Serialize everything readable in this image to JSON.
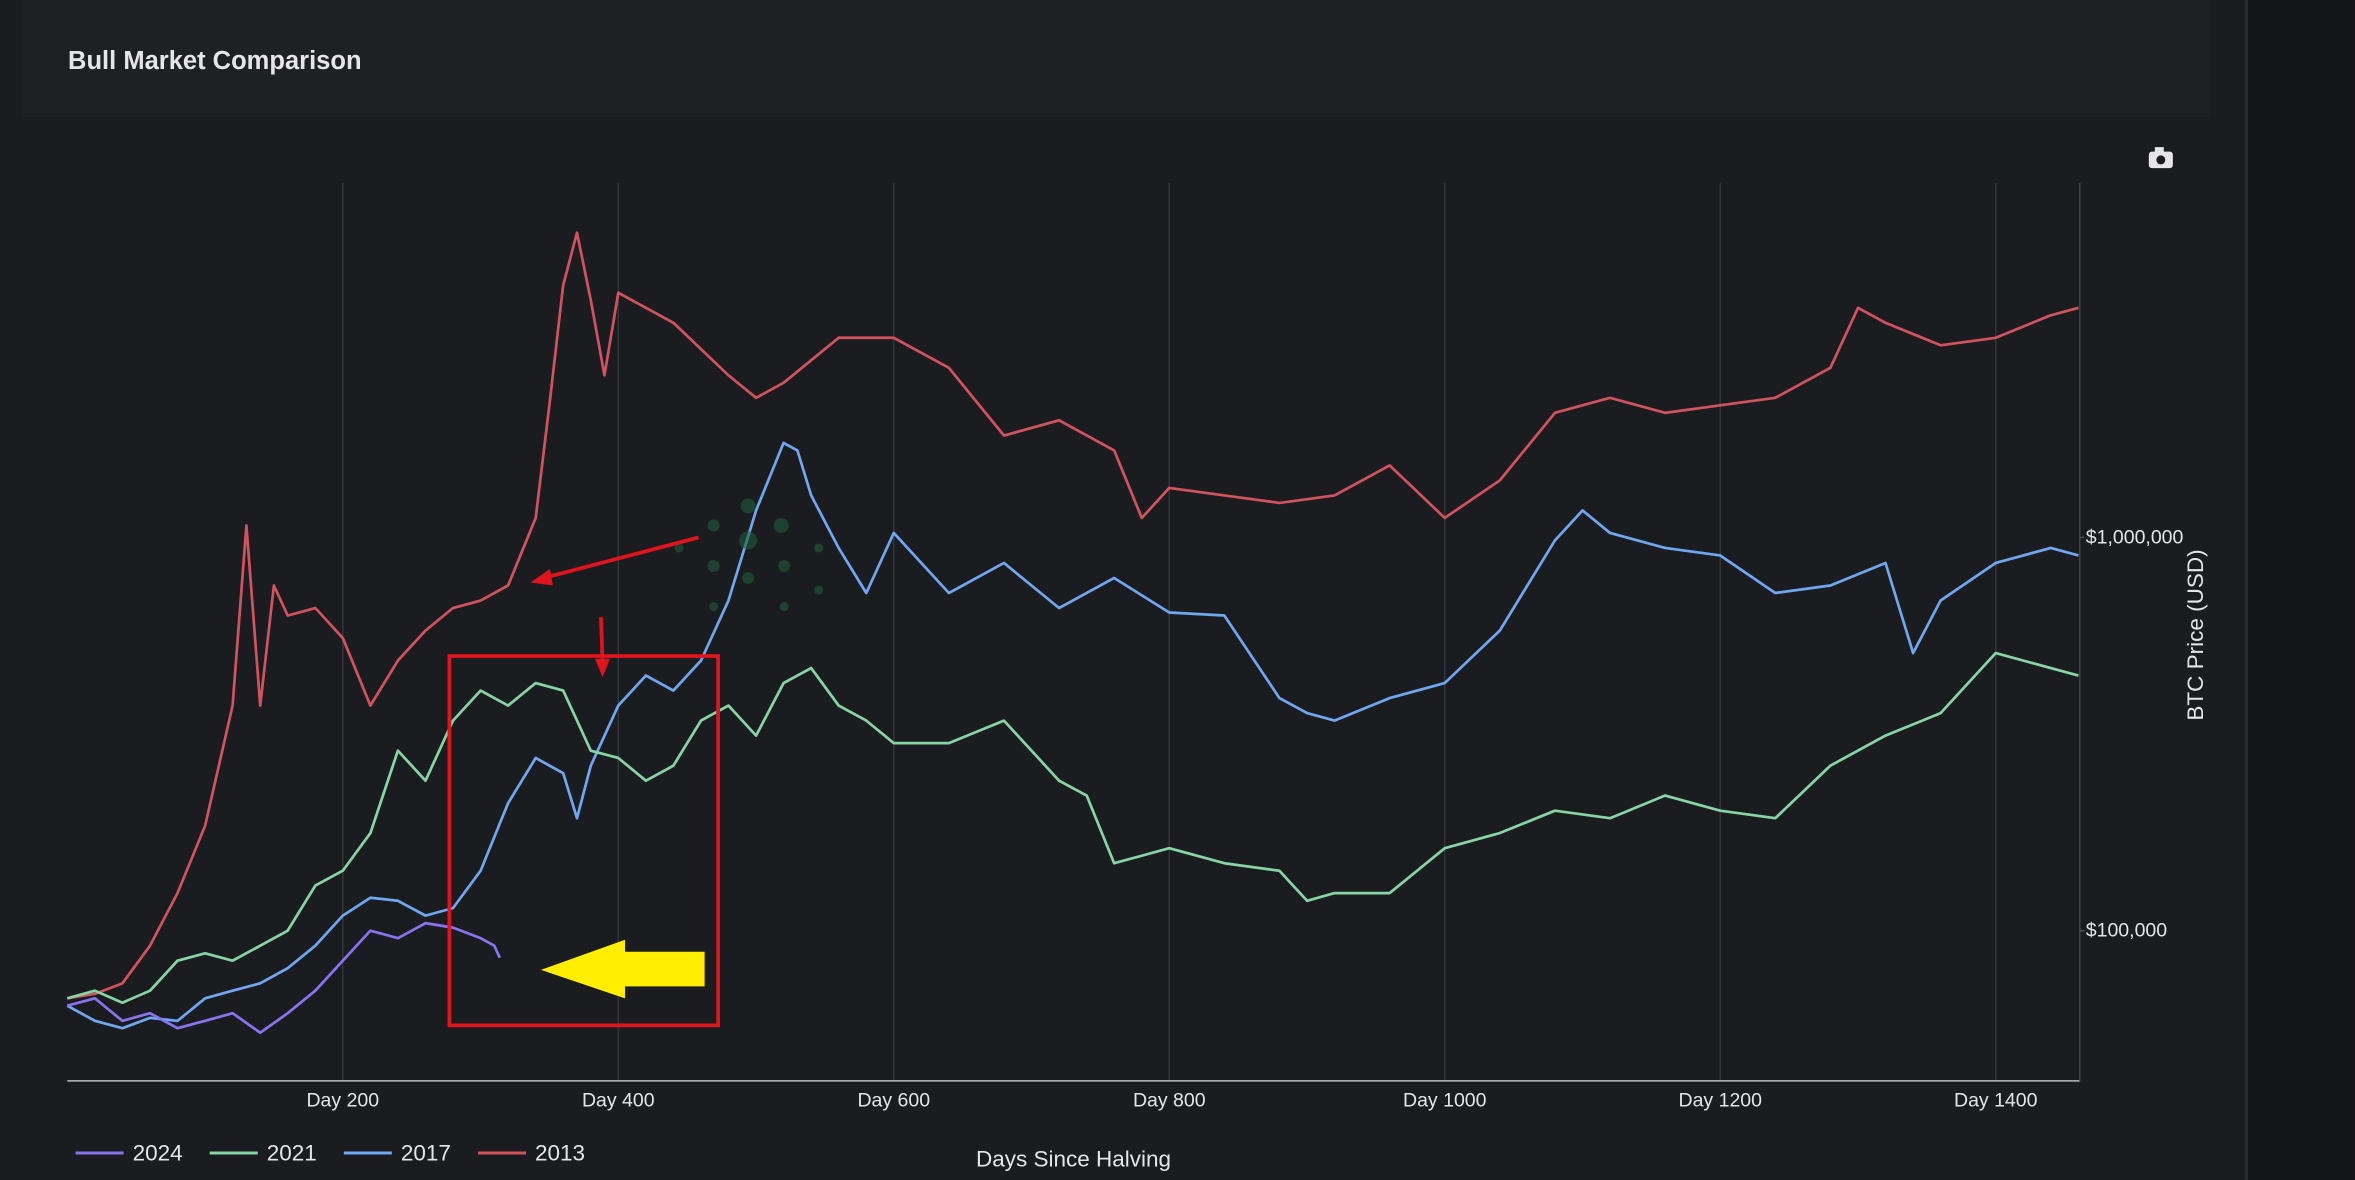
{
  "chart_data": {
    "type": "line",
    "title": "Bull Market Comparison",
    "x_label": "Days Since Halving",
    "y_label": "BTC Price (USD)",
    "y_scale": "log",
    "y_axis_side": "right",
    "grid": "x",
    "legend_position": "bottom-left",
    "xlim": [
      0,
      1461
    ],
    "ylim": [
      41500,
      7960000
    ],
    "xticks": [
      {
        "value": 200,
        "label": "Day 200"
      },
      {
        "value": 400,
        "label": "Day 400"
      },
      {
        "value": 600,
        "label": "Day 600"
      },
      {
        "value": 800,
        "label": "Day 800"
      },
      {
        "value": 1000,
        "label": "Day 1000"
      },
      {
        "value": 1200,
        "label": "Day 1200"
      },
      {
        "value": 1400,
        "label": "Day 1400"
      }
    ],
    "yticks": [
      {
        "value": 100000,
        "label": "$100,000"
      },
      {
        "value": 1000000,
        "label": "$1,000,000"
      }
    ],
    "series": [
      {
        "name": "2024",
        "color": "#8a72f0",
        "x": [
          0,
          20,
          40,
          60,
          80,
          100,
          120,
          140,
          160,
          180,
          200,
          220,
          240,
          260,
          280,
          300,
          310,
          314
        ],
        "values": [
          64450,
          67300,
          59000,
          61680,
          56500,
          59000,
          61680,
          55030,
          61680,
          70360,
          83880,
          100000,
          95700,
          104500,
          101800,
          95700,
          91600,
          85350
        ]
      },
      {
        "name": "2021",
        "color": "#86d6a4",
        "x": [
          0,
          20,
          40,
          60,
          80,
          100,
          120,
          140,
          160,
          180,
          200,
          220,
          240,
          260,
          280,
          300,
          320,
          340,
          360,
          370,
          380,
          400,
          420,
          440,
          460,
          480,
          500,
          520,
          540,
          560,
          580,
          600,
          640,
          680,
          720,
          740,
          760,
          800,
          840,
          880,
          900,
          920,
          960,
          1000,
          1040,
          1080,
          1120,
          1160,
          1200,
          1240,
          1280,
          1320,
          1360,
          1400,
          1440,
          1460
        ],
        "values": [
          67300,
          70360,
          65580,
          70360,
          83880,
          87640,
          83880,
          91600,
          100000,
          130200,
          142100,
          177100,
          287100,
          240800,
          342200,
          408100,
          373700,
          426400,
          408100,
          342200,
          287100,
          274800,
          240800,
          262900,
          342200,
          373700,
          313500,
          426400,
          465500,
          373700,
          342200,
          300000,
          300000,
          342200,
          240800,
          220600,
          148500,
          162100,
          148500,
          142100,
          119200,
          124600,
          124600,
          162100,
          177100,
          202000,
          193300,
          220600,
          202000,
          193300,
          262900,
          313500,
          357600,
          508000,
          465500,
          445600
        ]
      },
      {
        "name": "2017",
        "color": "#6ea8f2",
        "x": [
          0,
          20,
          40,
          60,
          80,
          100,
          120,
          140,
          160,
          180,
          200,
          220,
          240,
          260,
          280,
          300,
          320,
          340,
          360,
          370,
          380,
          400,
          420,
          440,
          460,
          480,
          500,
          520,
          530,
          540,
          560,
          580,
          600,
          640,
          680,
          720,
          760,
          800,
          840,
          880,
          900,
          920,
          960,
          1000,
          1040,
          1080,
          1100,
          1120,
          1160,
          1200,
          1240,
          1280,
          1320,
          1340,
          1360,
          1400,
          1440,
          1460
        ],
        "values": [
          64450,
          59000,
          56500,
          60050,
          59000,
          67300,
          70360,
          73500,
          80270,
          91600,
          109200,
          121300,
          119200,
          109200,
          114100,
          142100,
          211000,
          274800,
          251600,
          193300,
          262900,
          373700,
          445600,
          408100,
          486400,
          691000,
          1171000,
          1740000,
          1665000,
          1279000,
          940300,
          722500,
          1027000,
          722500,
          861300,
          661500,
          788900,
          644600,
          633000,
          390500,
          357600,
          342200,
          390500,
          426400,
          580000,
          982700,
          1171000,
          1027000,
          940300,
          900100,
          722500,
          755000,
          861300,
          508000,
          691000,
          861300,
          940300,
          900100
        ]
      },
      {
        "name": "2013",
        "color": "#d2535d",
        "x": [
          0,
          20,
          40,
          60,
          80,
          100,
          120,
          130,
          140,
          150,
          160,
          180,
          200,
          220,
          240,
          260,
          280,
          300,
          320,
          340,
          350,
          360,
          370,
          380,
          390,
          400,
          440,
          480,
          500,
          520,
          560,
          600,
          640,
          680,
          720,
          760,
          780,
          800,
          840,
          880,
          920,
          960,
          1000,
          1040,
          1080,
          1120,
          1160,
          1200,
          1240,
          1280,
          1300,
          1320,
          1360,
          1400,
          1440,
          1460
        ],
        "values": [
          67300,
          69100,
          73500,
          91600,
          124600,
          185000,
          373700,
          1073000,
          373700,
          755000,
          633000,
          661500,
          555000,
          373700,
          486400,
          580000,
          661500,
          691000,
          755000,
          1121000,
          2167000,
          4377000,
          5954000,
          4010000,
          2584000,
          4190000,
          3514000,
          2584000,
          2265000,
          2473000,
          3218000,
          3218000,
          2700000,
          1817000,
          1985000,
          1665000,
          1121000,
          1337000,
          1279000,
          1224000,
          1279000,
          1525000,
          1121000,
          1396000,
          2074000,
          2265000,
          2074000,
          2167000,
          2265000,
          2700000,
          3837000,
          3514000,
          3081000,
          3218000,
          3672000,
          3837000
        ]
      }
    ]
  }
}
